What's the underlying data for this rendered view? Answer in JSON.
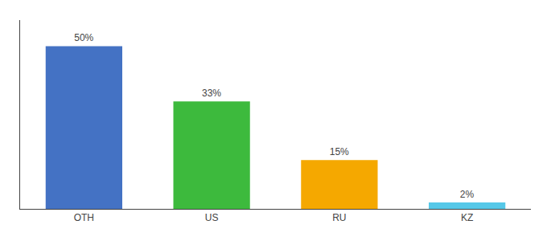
{
  "chart_data": {
    "type": "bar",
    "categories": [
      "OTH",
      "US",
      "RU",
      "KZ"
    ],
    "values": [
      50,
      33,
      15,
      2
    ],
    "value_labels": [
      "50%",
      "33%",
      "15%",
      "2%"
    ],
    "colors": [
      "#4472c4",
      "#3dba3d",
      "#f5a800",
      "#56c8e8"
    ],
    "ylim": [
      0,
      58
    ],
    "data_labels": true,
    "tick_labels": "x",
    "grid": false
  }
}
